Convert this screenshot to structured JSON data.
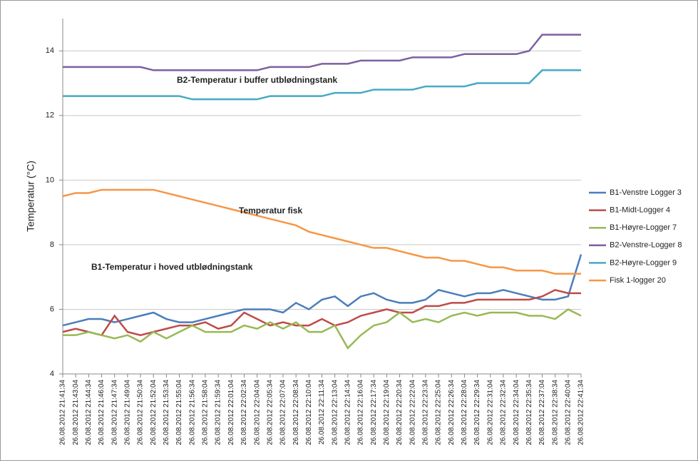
{
  "chart_data": {
    "type": "line",
    "y_label": "Temperatur (°C)",
    "annotations": [
      "B2-Temperatur i buffer utblødningstank",
      "Temperatur fisk",
      "B1-Temperatur i hoved utblødningstank"
    ],
    "categories": [
      "26.08.2012 21:41:34",
      "26.08.2012 21:43:04",
      "26.08.2012 21:44:34",
      "26.08.2012 21:46:04",
      "26.08.2012 21:47:34",
      "26.08.2012 21:49:04",
      "26.08.2012 21:50:34",
      "26.08.2012 21:52:04",
      "26.08.2012 21:53:34",
      "26.08.2012 21:55:04",
      "26.08.2012 21:56:34",
      "26.08.2012 21:58:04",
      "26.08.2012 21:59:34",
      "26.08.2012 22:01:04",
      "26.08.2012 22:02:34",
      "26.08.2012 22:04:04",
      "26.08.2012 22:05:34",
      "26.08.2012 22:07:04",
      "26.08.2012 22:08:34",
      "26.08.2012 22:10:04",
      "26.08.2012 22:11:34",
      "26.08.2012 22:13:04",
      "26.08.2012 22:14:34",
      "26.08.2012 22:16:04",
      "26.08.2012 22:17:34",
      "26.08.2012 22:19:04",
      "26.08.2012 22:20:34",
      "26.08.2012 22:22:04",
      "26.08.2012 22:23:34",
      "26.08.2012 22:25:04",
      "26.08.2012 22:26:34",
      "26.08.2012 22:28:04",
      "26.08.2012 22:29:34",
      "26.08.2012 22:31:04",
      "26.08.2012 22:32:34",
      "26.08.2012 22:34:04",
      "26.08.2012 22:35:34",
      "26.08.2012 22:37:04",
      "26.08.2012 22:38:34",
      "26.08.2012 22:40:04",
      "26.08.2012 22:41:34"
    ],
    "series": [
      {
        "name": "B1-Venstre Logger 3",
        "color": "#4a7ebb",
        "values": [
          5.5,
          5.6,
          5.7,
          5.7,
          5.6,
          5.7,
          5.8,
          5.9,
          5.7,
          5.6,
          5.6,
          5.7,
          5.8,
          5.9,
          6.0,
          6.0,
          6.0,
          5.9,
          6.2,
          6.0,
          6.3,
          6.4,
          6.1,
          6.4,
          6.5,
          6.3,
          6.2,
          6.2,
          6.3,
          6.6,
          6.5,
          6.4,
          6.5,
          6.5,
          6.6,
          6.5,
          6.4,
          6.3,
          6.3,
          6.4,
          7.7
        ]
      },
      {
        "name": "B1-Midt-Logger 4",
        "color": "#be4b48",
        "values": [
          5.3,
          5.4,
          5.3,
          5.2,
          5.8,
          5.3,
          5.2,
          5.3,
          5.4,
          5.5,
          5.5,
          5.6,
          5.4,
          5.5,
          5.9,
          5.7,
          5.5,
          5.6,
          5.5,
          5.5,
          5.7,
          5.5,
          5.6,
          5.8,
          5.9,
          6.0,
          5.9,
          5.9,
          6.1,
          6.1,
          6.2,
          6.2,
          6.3,
          6.3,
          6.3,
          6.3,
          6.3,
          6.4,
          6.6,
          6.5,
          6.5
        ]
      },
      {
        "name": "B1-Høyre-Logger 7",
        "color": "#98b954",
        "values": [
          5.2,
          5.2,
          5.3,
          5.2,
          5.1,
          5.2,
          5.0,
          5.3,
          5.1,
          5.3,
          5.5,
          5.3,
          5.3,
          5.3,
          5.5,
          5.4,
          5.6,
          5.4,
          5.6,
          5.3,
          5.3,
          5.5,
          4.8,
          5.2,
          5.5,
          5.6,
          5.9,
          5.6,
          5.7,
          5.6,
          5.8,
          5.9,
          5.8,
          5.9,
          5.9,
          5.9,
          5.8,
          5.8,
          5.7,
          6.0,
          5.8
        ]
      },
      {
        "name": "B2-Venstre-Logger 8",
        "color": "#7d60a0",
        "values": [
          13.5,
          13.5,
          13.5,
          13.5,
          13.5,
          13.5,
          13.5,
          13.4,
          13.4,
          13.4,
          13.4,
          13.4,
          13.4,
          13.4,
          13.4,
          13.4,
          13.5,
          13.5,
          13.5,
          13.5,
          13.6,
          13.6,
          13.6,
          13.7,
          13.7,
          13.7,
          13.7,
          13.8,
          13.8,
          13.8,
          13.8,
          13.9,
          13.9,
          13.9,
          13.9,
          13.9,
          14.0,
          14.5,
          14.5,
          14.5,
          14.5
        ]
      },
      {
        "name": "B2-Høyre-Logger 9",
        "color": "#46aac5",
        "values": [
          12.6,
          12.6,
          12.6,
          12.6,
          12.6,
          12.6,
          12.6,
          12.6,
          12.6,
          12.6,
          12.5,
          12.5,
          12.5,
          12.5,
          12.5,
          12.5,
          12.6,
          12.6,
          12.6,
          12.6,
          12.6,
          12.7,
          12.7,
          12.7,
          12.8,
          12.8,
          12.8,
          12.8,
          12.9,
          12.9,
          12.9,
          12.9,
          13.0,
          13.0,
          13.0,
          13.0,
          13.0,
          13.4,
          13.4,
          13.4,
          13.4
        ]
      },
      {
        "name": "Fisk 1-logger 20",
        "color": "#f79646",
        "values": [
          9.5,
          9.6,
          9.6,
          9.7,
          9.7,
          9.7,
          9.7,
          9.7,
          9.6,
          9.5,
          9.4,
          9.3,
          9.2,
          9.1,
          9.0,
          8.9,
          8.8,
          8.7,
          8.6,
          8.4,
          8.3,
          8.2,
          8.1,
          8.0,
          7.9,
          7.9,
          7.8,
          7.7,
          7.6,
          7.6,
          7.5,
          7.5,
          7.4,
          7.3,
          7.3,
          7.2,
          7.2,
          7.2,
          7.1,
          7.1,
          7.1
        ]
      }
    ],
    "ylim": [
      4,
      15
    ],
    "yticks": [
      4,
      6,
      8,
      10,
      12,
      14
    ],
    "grid": true,
    "legend": "right"
  }
}
